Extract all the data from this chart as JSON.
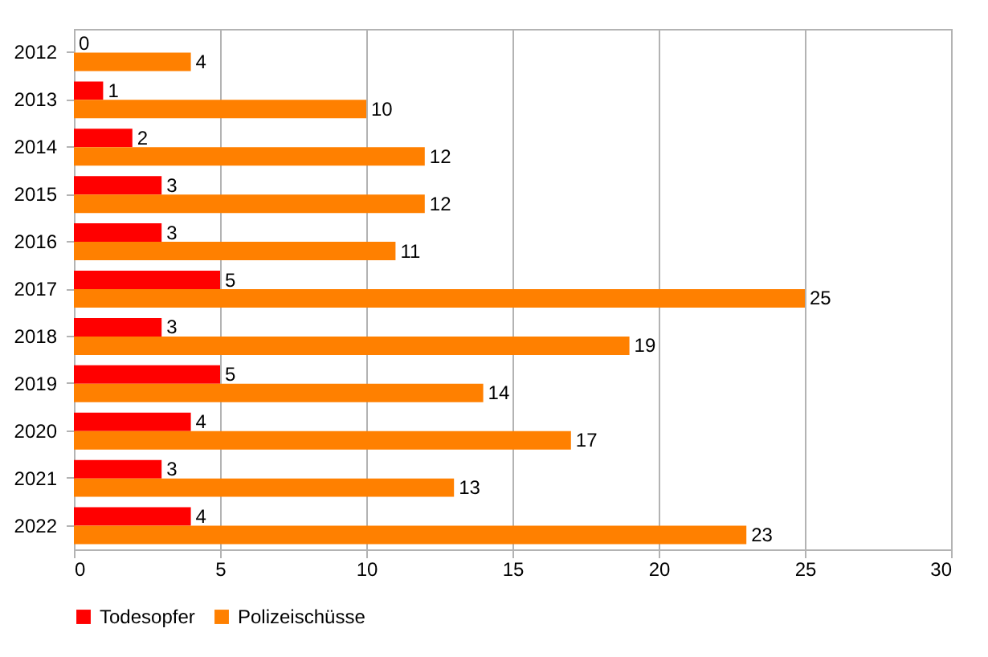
{
  "chart_data": {
    "type": "bar",
    "orientation": "horizontal",
    "categories": [
      "2012",
      "2013",
      "2014",
      "2015",
      "2016",
      "2017",
      "2018",
      "2019",
      "2020",
      "2021",
      "2022"
    ],
    "series": [
      {
        "name": "Todesopfer",
        "color": "#ff0000",
        "values": [
          0,
          1,
          2,
          3,
          3,
          5,
          3,
          5,
          4,
          3,
          4
        ]
      },
      {
        "name": "Polizeischüsse",
        "color": "#ff8000",
        "values": [
          4,
          10,
          12,
          12,
          11,
          25,
          19,
          14,
          17,
          13,
          23
        ]
      }
    ],
    "xlim": [
      0,
      30
    ],
    "xticks": [
      0,
      5,
      10,
      15,
      20,
      25,
      30
    ],
    "grid": "x",
    "legend": "bottom",
    "data_labels": true
  }
}
